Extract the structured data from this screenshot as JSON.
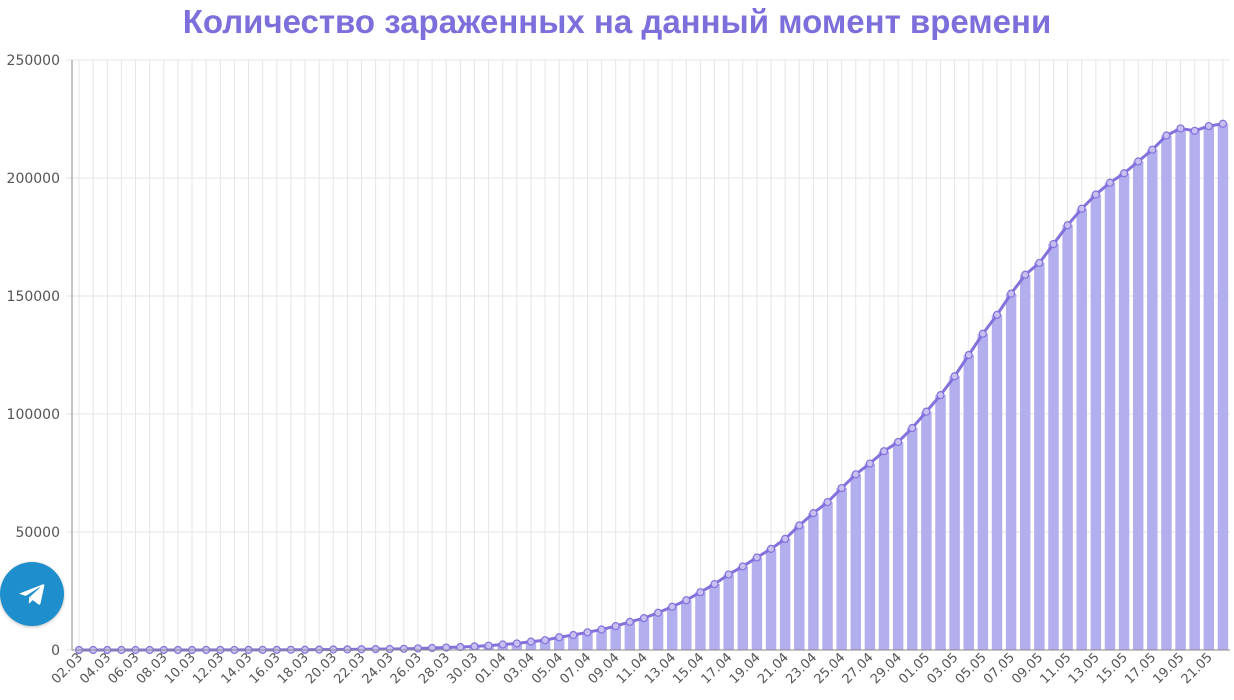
{
  "chart_data": {
    "type": "bar",
    "title": "Количество зараженных на данный момент времени",
    "xlabel": "",
    "ylabel": "",
    "ylim": [
      0,
      250000
    ],
    "yticks": [
      0,
      50000,
      100000,
      150000,
      200000,
      250000
    ],
    "grid": true,
    "legend": "none",
    "categories": [
      "02.03",
      "03.03",
      "04.03",
      "05.03",
      "06.03",
      "07.03",
      "08.03",
      "09.03",
      "10.03",
      "11.03",
      "12.03",
      "13.03",
      "14.03",
      "15.03",
      "16.03",
      "17.03",
      "18.03",
      "19.03",
      "20.03",
      "21.03",
      "22.03",
      "23.03",
      "24.03",
      "25.03",
      "26.03",
      "27.03",
      "28.03",
      "29.03",
      "30.03",
      "31.03",
      "01.04",
      "02.04",
      "03.04",
      "04.04",
      "05.04",
      "06.04",
      "07.04",
      "08.04",
      "09.04",
      "10.04",
      "11.04",
      "12.04",
      "13.04",
      "14.04",
      "15.04",
      "16.04",
      "17.04",
      "18.04",
      "19.04",
      "20.04",
      "21.04",
      "22.04",
      "23.04",
      "24.04",
      "25.04",
      "26.04",
      "27.04",
      "28.04",
      "29.04",
      "30.04",
      "01.05",
      "02.05",
      "03.05",
      "04.05",
      "05.05",
      "06.05",
      "07.05",
      "08.05",
      "09.05",
      "10.05",
      "11.05",
      "12.05",
      "13.05",
      "14.05",
      "15.05",
      "16.05",
      "17.05",
      "18.05",
      "19.05",
      "20.05",
      "21.05",
      "22.05"
    ],
    "series": [
      {
        "values": [
          3,
          3,
          3,
          3,
          10,
          10,
          10,
          14,
          14,
          20,
          28,
          34,
          45,
          59,
          63,
          90,
          114,
          147,
          199,
          253,
          306,
          367,
          438,
          495,
          658,
          840,
          1036,
          1264,
          1534,
          1837,
          2337,
          2777,
          3548,
          4149,
          5389,
          6343,
          7497,
          8672,
          10131,
          11917,
          13504,
          15770,
          18328,
          21102,
          24490,
          27938,
          32008,
          35402,
          39201,
          42853,
          47093,
          52763,
          57999,
          62658,
          68622,
          74434,
          79007,
          84235,
          88141,
          94055,
          101000,
          108000,
          116000,
          125000,
          134000,
          142000,
          151000,
          159000,
          164000,
          172000,
          180000,
          187000,
          193000,
          198000,
          202000,
          207000,
          212000,
          218000,
          221000,
          220000,
          222000,
          223000
        ]
      }
    ],
    "colors": {
      "bar": "#b3aeed",
      "line": "#8471dc",
      "marker_fill": "#c7c0f0",
      "grid": "#e5e5e5",
      "axis": "#555555",
      "title": "#7c6fdc",
      "telegram": "#1f8ecc"
    }
  },
  "widgets": {
    "share_icon": "telegram-icon"
  }
}
